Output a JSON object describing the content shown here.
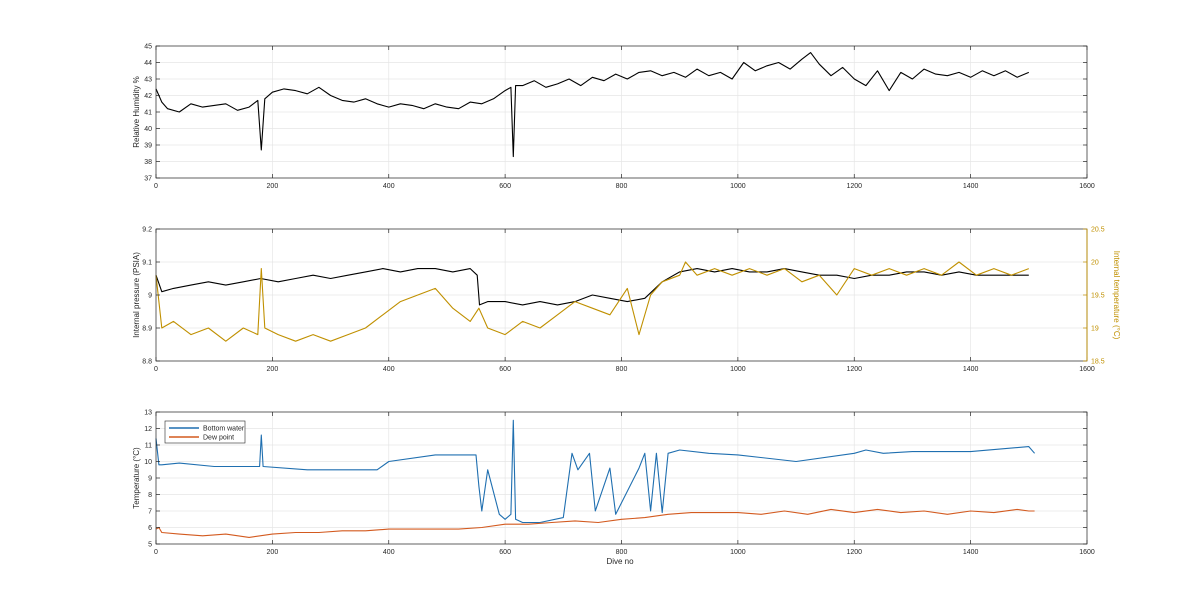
{
  "colors": {
    "black_series": "#000000",
    "pressure": "#000000",
    "internal_temp": "#C09000",
    "bottom_water": "#1f6fb0",
    "dew_point": "#d35a1f",
    "axis": "#262626",
    "grid": "#e6e6e6"
  },
  "chart_data": [
    {
      "type": "line",
      "xlabel": "",
      "ylabel": "Relative Humidity %",
      "xlim": [
        0,
        1600
      ],
      "ylim": [
        37,
        45
      ],
      "xticks": [
        "0",
        "200",
        "400",
        "600",
        "800",
        "1000",
        "1200",
        "1400",
        "1600"
      ],
      "yticks": [
        "37",
        "38",
        "39",
        "40",
        "41",
        "42",
        "43",
        "44",
        "45"
      ],
      "grid": true,
      "series": [
        {
          "color": "#000000",
          "x": [
            0,
            10,
            20,
            40,
            60,
            80,
            100,
            120,
            140,
            160,
            175,
            181,
            187,
            200,
            220,
            240,
            260,
            280,
            300,
            320,
            340,
            360,
            380,
            400,
            420,
            440,
            460,
            480,
            500,
            520,
            540,
            560,
            580,
            600,
            610,
            614,
            618,
            630,
            650,
            670,
            690,
            710,
            730,
            750,
            770,
            790,
            810,
            830,
            850,
            870,
            890,
            910,
            930,
            950,
            970,
            990,
            1010,
            1030,
            1050,
            1070,
            1090,
            1110,
            1125,
            1140,
            1160,
            1180,
            1200,
            1220,
            1240,
            1260,
            1280,
            1300,
            1320,
            1340,
            1360,
            1380,
            1400,
            1420,
            1440,
            1460,
            1480,
            1500
          ],
          "values": [
            42.4,
            41.6,
            41.2,
            41.0,
            41.5,
            41.3,
            41.4,
            41.5,
            41.1,
            41.3,
            41.7,
            38.7,
            41.8,
            42.2,
            42.4,
            42.3,
            42.1,
            42.5,
            42.0,
            41.7,
            41.6,
            41.8,
            41.5,
            41.3,
            41.5,
            41.4,
            41.2,
            41.5,
            41.3,
            41.2,
            41.6,
            41.5,
            41.8,
            42.3,
            42.5,
            38.3,
            42.6,
            42.6,
            42.9,
            42.5,
            42.7,
            43.0,
            42.6,
            43.1,
            42.9,
            43.3,
            43.0,
            43.4,
            43.5,
            43.2,
            43.4,
            43.1,
            43.6,
            43.2,
            43.4,
            43.0,
            44.0,
            43.5,
            43.8,
            44.0,
            43.6,
            44.2,
            44.6,
            43.9,
            43.2,
            43.7,
            43.0,
            42.6,
            43.5,
            42.3,
            43.4,
            43.0,
            43.6,
            43.3,
            43.2,
            43.4,
            43.1,
            43.5,
            43.2,
            43.5,
            43.1,
            43.4
          ]
        }
      ]
    },
    {
      "type": "line",
      "xlabel": "",
      "ylabel": "Internal pressure (PSIA)",
      "y2label": "Internal temperature (°C)",
      "xlim": [
        0,
        1600
      ],
      "ylim": [
        8.8,
        9.2
      ],
      "y2lim": [
        18.5,
        20.5
      ],
      "xticks": [
        "0",
        "200",
        "400",
        "600",
        "800",
        "1000",
        "1200",
        "1400",
        "1600"
      ],
      "yticks": [
        "8.8",
        "8.9",
        "9",
        "9.1",
        "9.2"
      ],
      "y2ticks": [
        "18.5",
        "19",
        "19.5",
        "20",
        "20.5"
      ],
      "grid": true,
      "series": [
        {
          "axis": "left",
          "color": "#000000",
          "x": [
            0,
            10,
            30,
            60,
            90,
            120,
            150,
            180,
            210,
            240,
            270,
            300,
            330,
            360,
            390,
            420,
            450,
            480,
            510,
            540,
            552,
            556,
            570,
            600,
            630,
            660,
            690,
            720,
            750,
            780,
            810,
            840,
            870,
            900,
            930,
            960,
            990,
            1020,
            1050,
            1080,
            1110,
            1140,
            1170,
            1200,
            1230,
            1260,
            1290,
            1320,
            1350,
            1380,
            1410,
            1440,
            1470,
            1500
          ],
          "values": [
            9.06,
            9.01,
            9.02,
            9.03,
            9.04,
            9.03,
            9.04,
            9.05,
            9.04,
            9.05,
            9.06,
            9.05,
            9.06,
            9.07,
            9.08,
            9.07,
            9.08,
            9.08,
            9.07,
            9.08,
            9.06,
            8.97,
            8.98,
            8.98,
            8.97,
            8.98,
            8.97,
            8.98,
            9.0,
            8.99,
            8.98,
            8.99,
            9.04,
            9.07,
            9.08,
            9.07,
            9.08,
            9.07,
            9.07,
            9.08,
            9.07,
            9.06,
            9.06,
            9.05,
            9.06,
            9.06,
            9.07,
            9.07,
            9.06,
            9.07,
            9.06,
            9.06,
            9.06,
            9.06
          ]
        },
        {
          "axis": "right",
          "color": "#C09000",
          "x": [
            0,
            10,
            30,
            60,
            90,
            120,
            150,
            175,
            181,
            187,
            210,
            240,
            270,
            300,
            330,
            360,
            390,
            420,
            450,
            480,
            510,
            540,
            555,
            570,
            600,
            630,
            660,
            690,
            720,
            750,
            780,
            810,
            830,
            850,
            870,
            900,
            910,
            930,
            960,
            990,
            1020,
            1050,
            1080,
            1110,
            1140,
            1170,
            1200,
            1230,
            1260,
            1290,
            1320,
            1350,
            1380,
            1410,
            1440,
            1470,
            1500
          ],
          "values": [
            19.8,
            19.0,
            19.1,
            18.9,
            19.0,
            18.8,
            19.0,
            18.9,
            19.9,
            19.0,
            18.9,
            18.8,
            18.9,
            18.8,
            18.9,
            19.0,
            19.2,
            19.4,
            19.5,
            19.6,
            19.3,
            19.1,
            19.3,
            19.0,
            18.9,
            19.1,
            19.0,
            19.2,
            19.4,
            19.3,
            19.2,
            19.6,
            18.9,
            19.5,
            19.7,
            19.8,
            20.0,
            19.8,
            19.9,
            19.8,
            19.9,
            19.8,
            19.9,
            19.7,
            19.8,
            19.5,
            19.9,
            19.8,
            19.9,
            19.8,
            19.9,
            19.8,
            20.0,
            19.8,
            19.9,
            19.8,
            19.9
          ]
        }
      ]
    },
    {
      "type": "line",
      "xlabel": "Dive no",
      "ylabel": "Temperature (°C)",
      "xlim": [
        0,
        1600
      ],
      "ylim": [
        5,
        13
      ],
      "xticks": [
        "0",
        "200",
        "400",
        "600",
        "800",
        "1000",
        "1200",
        "1400",
        "1600"
      ],
      "yticks": [
        "5",
        "6",
        "7",
        "8",
        "9",
        "10",
        "11",
        "12",
        "13"
      ],
      "grid": true,
      "legend": "top-left",
      "series": [
        {
          "name": "Bottom water",
          "color": "#1f6fb0",
          "x": [
            0,
            5,
            10,
            40,
            100,
            178,
            181,
            184,
            260,
            380,
            400,
            480,
            550,
            555,
            560,
            570,
            590,
            600,
            610,
            614,
            618,
            630,
            660,
            700,
            715,
            725,
            745,
            755,
            780,
            790,
            830,
            840,
            850,
            860,
            870,
            880,
            900,
            950,
            1000,
            1100,
            1200,
            1220,
            1250,
            1300,
            1400,
            1500,
            1510
          ],
          "values": [
            11.4,
            9.8,
            9.8,
            9.9,
            9.7,
            9.7,
            11.6,
            9.7,
            9.5,
            9.5,
            10.0,
            10.4,
            10.4,
            8.5,
            7.0,
            9.5,
            6.8,
            6.5,
            6.8,
            12.5,
            6.5,
            6.3,
            6.3,
            6.6,
            10.5,
            9.5,
            10.5,
            7.0,
            9.6,
            6.8,
            9.6,
            10.5,
            7.0,
            10.5,
            6.9,
            10.5,
            10.7,
            10.5,
            10.4,
            10.0,
            10.5,
            10.7,
            10.5,
            10.6,
            10.6,
            10.9,
            10.5
          ]
        },
        {
          "name": "Dew point",
          "color": "#d35a1f",
          "x": [
            0,
            5,
            10,
            40,
            80,
            120,
            160,
            200,
            240,
            280,
            320,
            360,
            400,
            440,
            480,
            520,
            560,
            600,
            640,
            680,
            720,
            760,
            800,
            840,
            880,
            920,
            960,
            1000,
            1040,
            1080,
            1120,
            1160,
            1200,
            1240,
            1280,
            1320,
            1360,
            1400,
            1440,
            1480,
            1500,
            1510
          ],
          "values": [
            5.9,
            6.0,
            5.7,
            5.6,
            5.5,
            5.6,
            5.4,
            5.6,
            5.7,
            5.7,
            5.8,
            5.8,
            5.9,
            5.9,
            5.9,
            5.9,
            6.0,
            6.2,
            6.2,
            6.3,
            6.4,
            6.3,
            6.5,
            6.6,
            6.8,
            6.9,
            6.9,
            6.9,
            6.8,
            7.0,
            6.8,
            7.1,
            6.9,
            7.1,
            6.9,
            7.0,
            6.8,
            7.0,
            6.9,
            7.1,
            7.0,
            7.0
          ]
        }
      ]
    }
  ]
}
